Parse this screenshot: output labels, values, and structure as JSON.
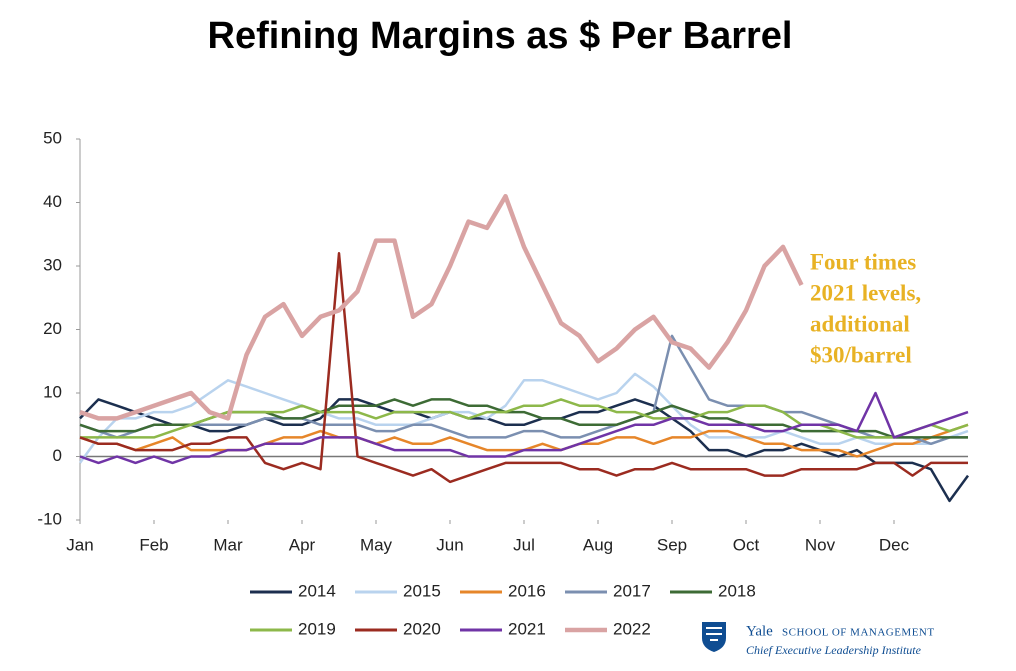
{
  "chart_data": {
    "type": "line",
    "title": "Refining Margins as $ Per Barrel",
    "annotation": [
      "Four times",
      "2021 levels,",
      "additional",
      "$30/barrel"
    ],
    "xlim": [
      0,
      12
    ],
    "xticks": [
      {
        "value": 0,
        "label": "Jan"
      },
      {
        "value": 1,
        "label": "Feb"
      },
      {
        "value": 2,
        "label": "Mar"
      },
      {
        "value": 3,
        "label": "Apr"
      },
      {
        "value": 4,
        "label": "May"
      },
      {
        "value": 5,
        "label": "Jun"
      },
      {
        "value": 6,
        "label": "Jul"
      },
      {
        "value": 7,
        "label": "Aug"
      },
      {
        "value": 8,
        "label": "Sep"
      },
      {
        "value": 9,
        "label": "Oct"
      },
      {
        "value": 10,
        "label": "Nov"
      },
      {
        "value": 11,
        "label": "Dec"
      }
    ],
    "ylim": [
      -10,
      50
    ],
    "yticks": [
      -10,
      0,
      10,
      20,
      30,
      40,
      50
    ],
    "x": [
      0,
      0.25,
      0.5,
      0.75,
      1,
      1.25,
      1.5,
      1.75,
      2,
      2.25,
      2.5,
      2.75,
      3,
      3.25,
      3.5,
      3.75,
      4,
      4.25,
      4.5,
      4.75,
      5,
      5.25,
      5.5,
      5.75,
      6,
      6.25,
      6.5,
      6.75,
      7,
      7.25,
      7.5,
      7.75,
      8,
      8.25,
      8.5,
      8.75,
      9,
      9.25,
      9.5,
      9.75,
      10,
      10.25,
      10.5,
      10.75,
      11,
      11.25,
      11.5,
      11.75,
      12
    ],
    "series": [
      {
        "name": "2014",
        "color": "#1c2f4f",
        "values": [
          6,
          9,
          8,
          7,
          6,
          5,
          5,
          4,
          4,
          5,
          6,
          5,
          5,
          6,
          9,
          9,
          8,
          7,
          7,
          6,
          7,
          6,
          6,
          5,
          5,
          6,
          6,
          7,
          7,
          8,
          9,
          8,
          6,
          4,
          1,
          1,
          0,
          1,
          1,
          2,
          1,
          0,
          1,
          -1,
          -1,
          -1,
          -2,
          -7,
          -3
        ]
      },
      {
        "name": "2015",
        "color": "#b9d3ee",
        "values": [
          -1,
          3,
          6,
          6,
          7,
          7,
          8,
          10,
          12,
          11,
          10,
          9,
          8,
          7,
          6,
          6,
          5,
          5,
          5,
          6,
          7,
          7,
          6,
          8,
          12,
          12,
          11,
          10,
          9,
          10,
          13,
          11,
          8,
          5,
          3,
          3,
          3,
          3,
          4,
          3,
          2,
          2,
          3,
          2,
          2,
          2,
          2,
          3,
          4
        ]
      },
      {
        "name": "2016",
        "color": "#e6862a",
        "values": [
          3,
          2,
          2,
          1,
          2,
          3,
          1,
          1,
          1,
          1,
          2,
          3,
          3,
          4,
          3,
          3,
          2,
          3,
          2,
          2,
          3,
          2,
          1,
          1,
          1,
          2,
          1,
          2,
          2,
          3,
          3,
          2,
          3,
          3,
          4,
          4,
          3,
          2,
          2,
          1,
          1,
          1,
          0,
          1,
          2,
          2,
          3,
          4,
          5
        ]
      },
      {
        "name": "2017",
        "color": "#7b8fb0",
        "values": [
          5,
          4,
          3,
          4,
          5,
          5,
          5,
          5,
          5,
          5,
          6,
          6,
          6,
          5,
          5,
          5,
          4,
          4,
          5,
          5,
          4,
          3,
          3,
          3,
          4,
          4,
          3,
          3,
          4,
          5,
          6,
          7,
          19,
          14,
          9,
          8,
          8,
          8,
          7,
          7,
          6,
          5,
          4,
          3,
          3,
          3,
          2,
          3,
          3
        ]
      },
      {
        "name": "2018",
        "color": "#3d6b35",
        "values": [
          5,
          4,
          4,
          4,
          5,
          5,
          5,
          6,
          7,
          7,
          7,
          6,
          6,
          7,
          8,
          8,
          8,
          9,
          8,
          9,
          9,
          8,
          8,
          7,
          7,
          6,
          6,
          5,
          5,
          5,
          6,
          7,
          8,
          7,
          6,
          6,
          5,
          5,
          5,
          4,
          4,
          4,
          4,
          4,
          3,
          3,
          3,
          3,
          3
        ]
      },
      {
        "name": "2019",
        "color": "#8db84a",
        "values": [
          3,
          3,
          3,
          3,
          3,
          4,
          5,
          6,
          7,
          7,
          7,
          7,
          8,
          7,
          7,
          7,
          6,
          7,
          7,
          7,
          7,
          6,
          7,
          7,
          8,
          8,
          9,
          8,
          8,
          7,
          7,
          6,
          6,
          6,
          7,
          7,
          8,
          8,
          7,
          5,
          5,
          4,
          3,
          3,
          3,
          4,
          5,
          4,
          5
        ]
      },
      {
        "name": "2020",
        "color": "#9b2b20",
        "values": [
          3,
          2,
          2,
          1,
          1,
          1,
          2,
          2,
          3,
          3,
          -1,
          -2,
          -1,
          -2,
          32,
          0,
          -1,
          -2,
          -3,
          -2,
          -4,
          -3,
          -2,
          -1,
          -1,
          -1,
          -1,
          -2,
          -2,
          -3,
          -2,
          -2,
          -1,
          -2,
          -2,
          -2,
          -2,
          -3,
          -3,
          -2,
          -2,
          -2,
          -2,
          -1,
          -1,
          -3,
          -1,
          -1,
          -1
        ]
      },
      {
        "name": "2021",
        "color": "#7034a6",
        "values": [
          0,
          -1,
          0,
          -1,
          0,
          -1,
          0,
          0,
          1,
          1,
          2,
          2,
          2,
          3,
          3,
          3,
          2,
          1,
          1,
          1,
          1,
          0,
          0,
          0,
          1,
          1,
          1,
          2,
          3,
          4,
          5,
          5,
          6,
          6,
          5,
          5,
          5,
          4,
          4,
          5,
          5,
          5,
          4,
          10,
          3,
          4,
          5,
          6,
          7
        ]
      },
      {
        "name": "2022",
        "color": "#d9a3a3",
        "values": [
          7,
          6,
          6,
          7,
          8,
          9,
          10,
          7,
          6,
          16,
          22,
          24,
          19,
          22,
          23,
          26,
          34,
          34,
          22,
          24,
          30,
          37,
          36,
          41,
          33,
          27,
          21,
          19,
          15,
          17,
          20,
          22,
          18,
          17,
          14,
          18,
          23,
          30,
          33,
          27,
          null,
          null,
          null,
          null,
          null,
          null,
          null,
          null,
          null
        ]
      }
    ]
  },
  "branding": {
    "school": "Yale",
    "school_sub": "SCHOOL OF MANAGEMENT",
    "institute": "Chief Executive Leadership Institute"
  }
}
